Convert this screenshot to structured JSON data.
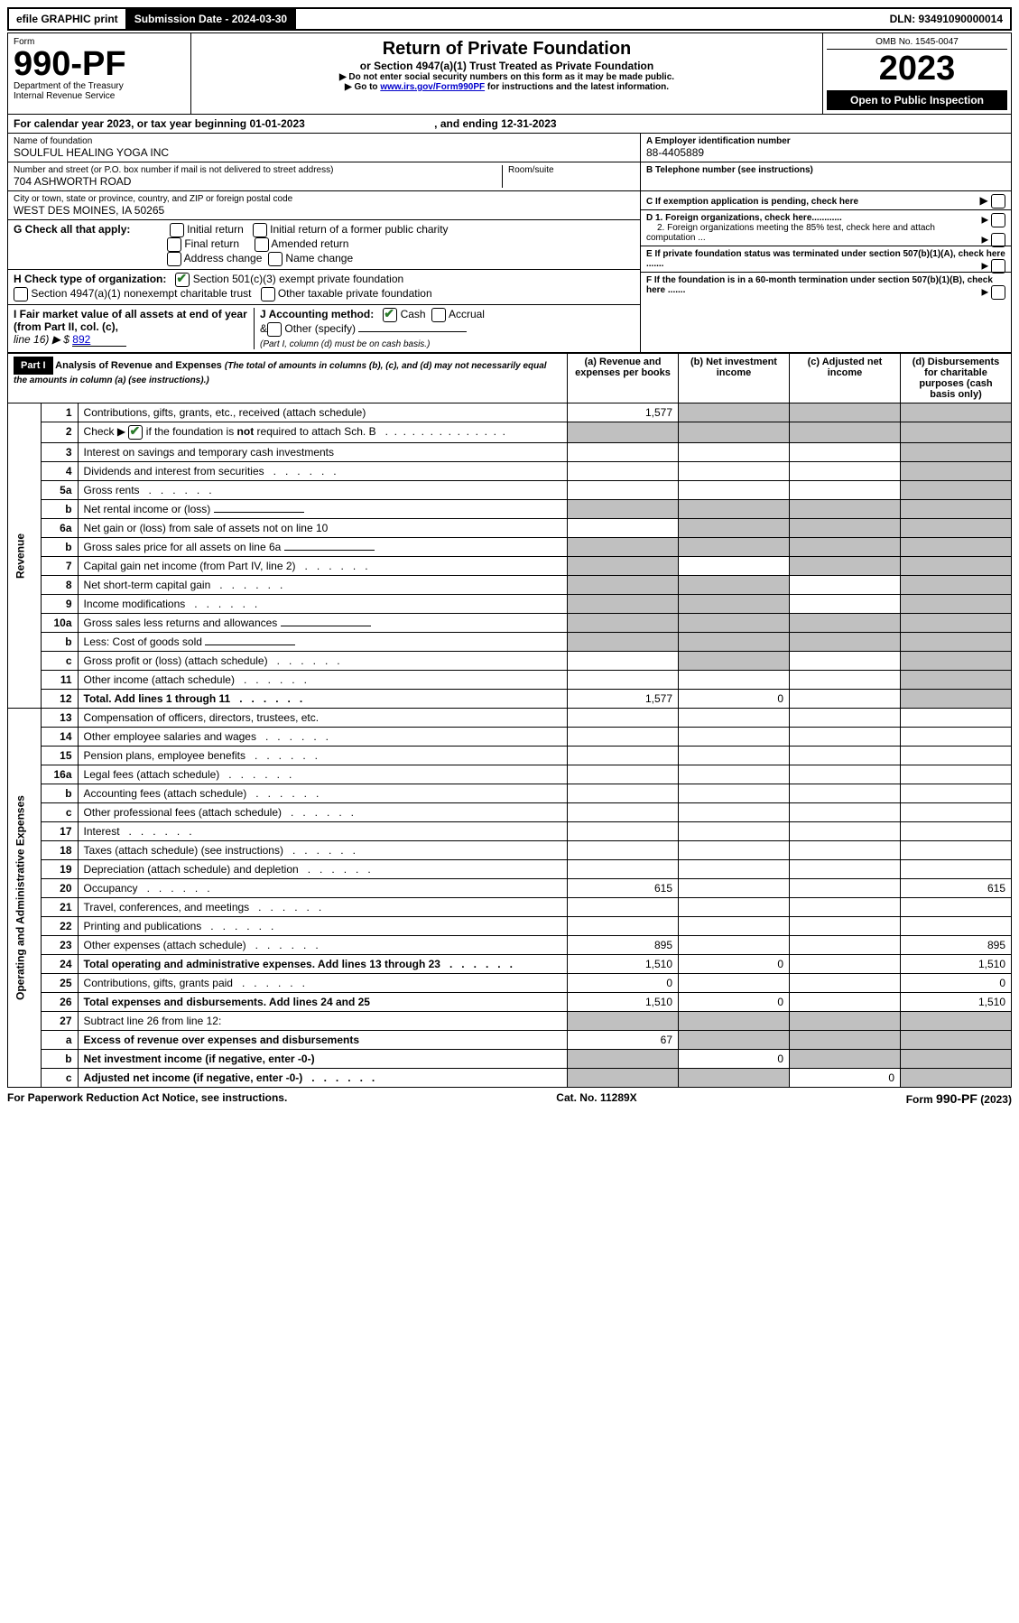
{
  "topbar": {
    "efile": "efile GRAPHIC print",
    "sub_label": "Submission Date - 2024-03-30",
    "dln": "DLN: 93491090000014"
  },
  "header": {
    "form_label": "Form",
    "form_no": "990-PF",
    "dept": "Department of the Treasury",
    "irs": "Internal Revenue Service",
    "title": "Return of Private Foundation",
    "subtitle": "or Section 4947(a)(1) Trust Treated as Private Foundation",
    "note1": "▶ Do not enter social security numbers on this form as it may be made public.",
    "note2_pre": "▶ Go to ",
    "note2_link": "www.irs.gov/Form990PF",
    "note2_post": " for instructions and the latest information.",
    "omb": "OMB No. 1545-0047",
    "year": "2023",
    "open": "Open to Public Inspection"
  },
  "calendar": {
    "text": "For calendar year 2023, or tax year beginning 01-01-2023",
    "ending": ", and ending 12-31-2023"
  },
  "entity": {
    "name_label": "Name of foundation",
    "name": "SOULFUL HEALING YOGA INC",
    "addr_label": "Number and street (or P.O. box number if mail is not delivered to street address)",
    "addr": "704 ASHWORTH ROAD",
    "room_label": "Room/suite",
    "city_label": "City or town, state or province, country, and ZIP or foreign postal code",
    "city": "WEST DES MOINES, IA  50265",
    "ein_label": "A Employer identification number",
    "ein": "88-4405889",
    "tel_label": "B Telephone number (see instructions)",
    "c_label": "C If exemption application is pending, check here",
    "d1": "D 1. Foreign organizations, check here............",
    "d2": "2. Foreign organizations meeting the 85% test, check here and attach computation ...",
    "e": "E  If private foundation status was terminated under section 507(b)(1)(A), check here .......",
    "f": "F  If the foundation is in a 60-month termination under section 507(b)(1)(B), check here .......",
    "g_label": "G Check all that apply:",
    "g_opts": [
      "Initial return",
      "Initial return of a former public charity",
      "Final return",
      "Amended return",
      "Address change",
      "Name change"
    ],
    "h_label": "H Check type of organization:",
    "h1": "Section 501(c)(3) exempt private foundation",
    "h2": "Section 4947(a)(1) nonexempt charitable trust",
    "h3": "Other taxable private foundation",
    "i_label": "I Fair market value of all assets at end of year (from Part II, col. (c),",
    "i_line": "line 16) ▶ $",
    "i_val": "892",
    "j_label": "J Accounting method:",
    "j_cash": "Cash",
    "j_accrual": "Accrual",
    "j_other": "Other (specify)",
    "j_note": "(Part I, column (d) must be on cash basis.)"
  },
  "part1": {
    "label": "Part I",
    "title": "Analysis of Revenue and Expenses",
    "title_note": "(The total of amounts in columns (b), (c), and (d) may not necessarily equal the amounts in column (a) (see instructions).)",
    "col_a": "(a)   Revenue and expenses per books",
    "col_b": "(b)   Net investment income",
    "col_c": "(c)   Adjusted net income",
    "col_d": "(d)   Disbursements for charitable purposes (cash basis only)"
  },
  "sections": {
    "revenue": "Revenue",
    "expenses": "Operating and Administrative Expenses"
  },
  "lines": [
    {
      "no": "1",
      "desc": "Contributions, gifts, grants, etc., received (attach schedule)",
      "a": "1,577"
    },
    {
      "no": "2",
      "desc": "Check ▶ ☑ if the foundation is not required to attach Sch. B",
      "dots": true
    },
    {
      "no": "3",
      "desc": "Interest on savings and temporary cash investments"
    },
    {
      "no": "4",
      "desc": "Dividends and interest from securities",
      "dots": true
    },
    {
      "no": "5a",
      "desc": "Gross rents",
      "dots": true
    },
    {
      "no": "b",
      "desc": "Net rental income or (loss)",
      "inset": true
    },
    {
      "no": "6a",
      "desc": "Net gain or (loss) from sale of assets not on line 10"
    },
    {
      "no": "b",
      "desc": "Gross sales price for all assets on line 6a",
      "inset": true
    },
    {
      "no": "7",
      "desc": "Capital gain net income (from Part IV, line 2)",
      "dots": true
    },
    {
      "no": "8",
      "desc": "Net short-term capital gain",
      "dots": true
    },
    {
      "no": "9",
      "desc": "Income modifications",
      "dots": true
    },
    {
      "no": "10a",
      "desc": "Gross sales less returns and allowances",
      "inset": true
    },
    {
      "no": "b",
      "desc": "Less: Cost of goods sold",
      "dots": true,
      "inset": true
    },
    {
      "no": "c",
      "desc": "Gross profit or (loss) (attach schedule)",
      "dots": true
    },
    {
      "no": "11",
      "desc": "Other income (attach schedule)",
      "dots": true
    },
    {
      "no": "12",
      "desc": "Total. Add lines 1 through 11",
      "bold": true,
      "dots": true,
      "a": "1,577",
      "b": "0"
    }
  ],
  "exp_lines": [
    {
      "no": "13",
      "desc": "Compensation of officers, directors, trustees, etc."
    },
    {
      "no": "14",
      "desc": "Other employee salaries and wages",
      "dots": true
    },
    {
      "no": "15",
      "desc": "Pension plans, employee benefits",
      "dots": true
    },
    {
      "no": "16a",
      "desc": "Legal fees (attach schedule)",
      "dots": true
    },
    {
      "no": "b",
      "desc": "Accounting fees (attach schedule)",
      "dots": true
    },
    {
      "no": "c",
      "desc": "Other professional fees (attach schedule)",
      "dots": true
    },
    {
      "no": "17",
      "desc": "Interest",
      "dots": true
    },
    {
      "no": "18",
      "desc": "Taxes (attach schedule) (see instructions)",
      "dots": true
    },
    {
      "no": "19",
      "desc": "Depreciation (attach schedule) and depletion",
      "dots": true
    },
    {
      "no": "20",
      "desc": "Occupancy",
      "dots": true,
      "a": "615",
      "d": "615"
    },
    {
      "no": "21",
      "desc": "Travel, conferences, and meetings",
      "dots": true
    },
    {
      "no": "22",
      "desc": "Printing and publications",
      "dots": true
    },
    {
      "no": "23",
      "desc": "Other expenses (attach schedule)",
      "dots": true,
      "a": "895",
      "d": "895"
    },
    {
      "no": "24",
      "desc": "Total operating and administrative expenses. Add lines 13 through 23",
      "bold": true,
      "dots": true,
      "a": "1,510",
      "b": "0",
      "d": "1,510"
    },
    {
      "no": "25",
      "desc": "Contributions, gifts, grants paid",
      "dots": true,
      "a": "0",
      "d": "0"
    },
    {
      "no": "26",
      "desc": "Total expenses and disbursements. Add lines 24 and 25",
      "bold": true,
      "a": "1,510",
      "b": "0",
      "d": "1,510"
    },
    {
      "no": "27",
      "desc": "Subtract line 26 from line 12:"
    },
    {
      "no": "a",
      "desc": "Excess of revenue over expenses and disbursements",
      "bold": true,
      "a": "67"
    },
    {
      "no": "b",
      "desc": "Net investment income (if negative, enter -0-)",
      "bold": true,
      "b": "0"
    },
    {
      "no": "c",
      "desc": "Adjusted net income (if negative, enter -0-)",
      "bold": true,
      "dots": true,
      "c": "0"
    }
  ],
  "footer": {
    "left": "For Paperwork Reduction Act Notice, see instructions.",
    "center": "Cat. No. 11289X",
    "right": "Form 990-PF (2023)"
  }
}
